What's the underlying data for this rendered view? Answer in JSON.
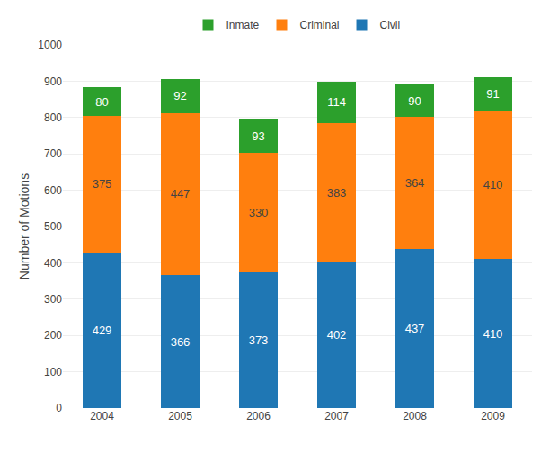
{
  "chart_data": {
    "type": "bar",
    "stacked": true,
    "categories": [
      "2004",
      "2005",
      "2006",
      "2007",
      "2008",
      "2009"
    ],
    "series": [
      {
        "name": "Civil",
        "values": [
          429,
          366,
          373,
          402,
          437,
          410
        ]
      },
      {
        "name": "Criminal",
        "values": [
          375,
          447,
          330,
          383,
          364,
          410
        ]
      },
      {
        "name": "Inmate",
        "values": [
          80,
          92,
          93,
          114,
          90,
          91
        ]
      }
    ],
    "ylabel": "Number of Motions",
    "ylim": [
      0,
      1000
    ],
    "yticks": [
      0,
      100,
      200,
      300,
      400,
      500,
      600,
      700,
      800,
      900,
      1000
    ],
    "grid": true,
    "legend": "top",
    "data_labels": true
  }
}
